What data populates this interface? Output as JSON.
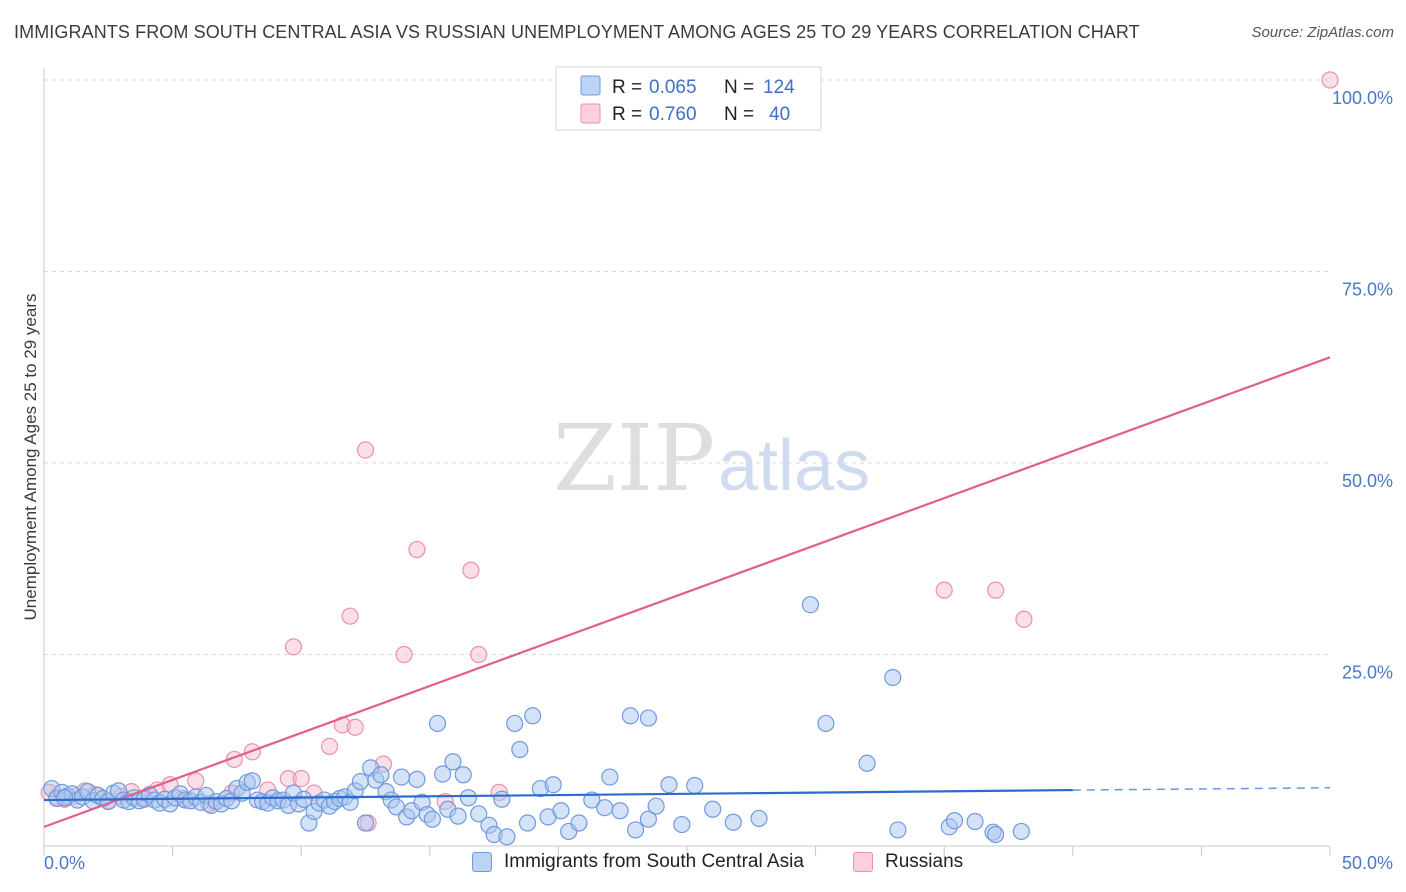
{
  "title": "IMMIGRANTS FROM SOUTH CENTRAL ASIA VS RUSSIAN UNEMPLOYMENT AMONG AGES 25 TO 29 YEARS CORRELATION CHART",
  "source": "Source: ZipAtlas.com",
  "watermark": {
    "zip": "ZIP",
    "atlas": "atlas"
  },
  "colors": {
    "blue_fill": "#a9c6f0",
    "blue_stroke": "#6f9ae0",
    "blue_line": "#2a6ccc",
    "pink_fill": "#f7b9cc",
    "pink_stroke": "#ee8fab",
    "pink_line": "#e0608b",
    "tick": "#4a78c8",
    "grid": "#d9d9d9"
  },
  "legend": {
    "r_label": "R =",
    "n_label": "N =",
    "series": [
      {
        "r": "0.065",
        "n": "124"
      },
      {
        "r": "0.760",
        "n": "40"
      }
    ]
  },
  "bottom_legend": [
    "Immigrants from South Central Asia",
    "Russians"
  ],
  "chart_data": {
    "type": "scatter",
    "title": "IMMIGRANTS FROM SOUTH CENTRAL ASIA VS RUSSIAN UNEMPLOYMENT AMONG AGES 25 TO 29 YEARS CORRELATION CHART",
    "xlabel": "",
    "ylabel": "Unemployment Among Ages 25 to 29 years",
    "xlim": [
      0,
      50
    ],
    "ylim": [
      0,
      100
    ],
    "x_tick_labels": [
      "0.0%",
      "50.0%"
    ],
    "y_ticks": [
      {
        "value": 25,
        "label": "25.0%"
      },
      {
        "value": 50,
        "label": "50.0%"
      },
      {
        "value": 75,
        "label": "75.0%"
      },
      {
        "value": 100,
        "label": "100.0%"
      }
    ],
    "series": [
      {
        "name": "Immigrants from South Central Asia",
        "r": 0.065,
        "n": 124,
        "trend": {
          "x0": 0,
          "y0": 6.0,
          "x1": 40,
          "y1": 7.3,
          "dash_x1": 50,
          "dash_y1": 7.6
        },
        "points": [
          [
            0.3,
            7.5
          ],
          [
            0.5,
            6.2
          ],
          [
            0.7,
            7.0
          ],
          [
            0.9,
            6.5
          ],
          [
            1.1,
            6.8
          ],
          [
            1.3,
            6.0
          ],
          [
            1.5,
            6.4
          ],
          [
            1.7,
            7.1
          ],
          [
            1.9,
            5.9
          ],
          [
            2.1,
            6.6
          ],
          [
            2.3,
            6.2
          ],
          [
            2.5,
            5.8
          ],
          [
            2.7,
            6.9
          ],
          [
            2.9,
            7.2
          ],
          [
            3.1,
            6.0
          ],
          [
            3.3,
            5.8
          ],
          [
            3.5,
            6.3
          ],
          [
            3.7,
            5.9
          ],
          [
            3.9,
            6.1
          ],
          [
            4.1,
            6.7
          ],
          [
            4.3,
            6.0
          ],
          [
            4.5,
            5.6
          ],
          [
            4.7,
            6.1
          ],
          [
            4.9,
            5.5
          ],
          [
            5.1,
            6.3
          ],
          [
            5.3,
            6.8
          ],
          [
            5.5,
            6.0
          ],
          [
            5.7,
            5.9
          ],
          [
            5.9,
            6.4
          ],
          [
            6.1,
            5.7
          ],
          [
            6.3,
            6.6
          ],
          [
            6.5,
            5.3
          ],
          [
            6.7,
            5.8
          ],
          [
            6.9,
            5.5
          ],
          [
            7.1,
            6.2
          ],
          [
            7.3,
            5.9
          ],
          [
            7.5,
            7.5
          ],
          [
            7.7,
            6.9
          ],
          [
            7.9,
            8.3
          ],
          [
            8.1,
            8.5
          ],
          [
            8.3,
            6.0
          ],
          [
            8.5,
            5.8
          ],
          [
            8.7,
            5.6
          ],
          [
            8.9,
            6.3
          ],
          [
            9.1,
            5.9
          ],
          [
            9.3,
            6.0
          ],
          [
            9.5,
            5.3
          ],
          [
            9.7,
            6.9
          ],
          [
            9.9,
            5.5
          ],
          [
            10.1,
            6.1
          ],
          [
            10.3,
            3.0
          ],
          [
            10.5,
            4.5
          ],
          [
            10.7,
            5.6
          ],
          [
            10.9,
            6.0
          ],
          [
            11.1,
            5.2
          ],
          [
            11.3,
            5.8
          ],
          [
            11.5,
            6.2
          ],
          [
            11.7,
            6.4
          ],
          [
            11.9,
            5.7
          ],
          [
            12.1,
            7.2
          ],
          [
            12.3,
            8.4
          ],
          [
            12.5,
            3.0
          ],
          [
            12.7,
            10.2
          ],
          [
            12.9,
            8.6
          ],
          [
            13.1,
            9.3
          ],
          [
            13.3,
            7.1
          ],
          [
            13.5,
            6.0
          ],
          [
            13.7,
            5.1
          ],
          [
            13.9,
            9.0
          ],
          [
            14.1,
            3.8
          ],
          [
            14.3,
            4.6
          ],
          [
            14.5,
            8.7
          ],
          [
            14.7,
            5.7
          ],
          [
            14.9,
            4.1
          ],
          [
            15.1,
            3.5
          ],
          [
            15.3,
            16.0
          ],
          [
            15.5,
            9.4
          ],
          [
            15.7,
            4.8
          ],
          [
            15.9,
            11.0
          ],
          [
            16.1,
            3.9
          ],
          [
            16.3,
            9.3
          ],
          [
            16.5,
            6.3
          ],
          [
            16.9,
            4.2
          ],
          [
            17.3,
            2.7
          ],
          [
            17.5,
            1.5
          ],
          [
            17.8,
            6.1
          ],
          [
            18.0,
            1.2
          ],
          [
            18.3,
            16.0
          ],
          [
            18.5,
            12.6
          ],
          [
            18.8,
            3.0
          ],
          [
            19.0,
            17.0
          ],
          [
            19.3,
            7.5
          ],
          [
            19.6,
            3.8
          ],
          [
            19.8,
            8.0
          ],
          [
            20.1,
            4.6
          ],
          [
            20.4,
            1.9
          ],
          [
            20.8,
            3.0
          ],
          [
            21.3,
            6.0
          ],
          [
            21.8,
            5.0
          ],
          [
            22.0,
            9.0
          ],
          [
            22.4,
            4.6
          ],
          [
            22.8,
            17.0
          ],
          [
            23.0,
            2.1
          ],
          [
            23.5,
            16.7
          ],
          [
            23.5,
            3.5
          ],
          [
            23.8,
            5.2
          ],
          [
            24.3,
            8.0
          ],
          [
            24.8,
            2.8
          ],
          [
            25.3,
            7.9
          ],
          [
            26.0,
            4.8
          ],
          [
            26.8,
            3.1
          ],
          [
            27.8,
            3.6
          ],
          [
            29.8,
            31.5
          ],
          [
            30.4,
            16.0
          ],
          [
            32.0,
            10.8
          ],
          [
            33.0,
            22.0
          ],
          [
            33.2,
            2.1
          ],
          [
            35.2,
            2.5
          ],
          [
            35.4,
            3.3
          ],
          [
            36.2,
            3.2
          ],
          [
            36.9,
            1.8
          ],
          [
            37.0,
            1.5
          ],
          [
            38.0,
            1.9
          ],
          [
            0.8,
            6.3
          ]
        ]
      },
      {
        "name": "Russians",
        "r": 0.76,
        "n": 40,
        "trend": {
          "x0": 0,
          "y0": 2.5,
          "x1": 50,
          "y1": 63.8
        },
        "points": [
          [
            0.2,
            7.0
          ],
          [
            0.5,
            6.4
          ],
          [
            0.8,
            6.1
          ],
          [
            1.2,
            6.5
          ],
          [
            1.6,
            7.2
          ],
          [
            2.0,
            6.7
          ],
          [
            2.5,
            5.9
          ],
          [
            3.0,
            6.5
          ],
          [
            3.4,
            7.1
          ],
          [
            3.9,
            6.3
          ],
          [
            4.4,
            7.3
          ],
          [
            4.9,
            8.0
          ],
          [
            5.4,
            6.2
          ],
          [
            5.9,
            8.5
          ],
          [
            6.4,
            5.5
          ],
          [
            7.3,
            6.9
          ],
          [
            7.4,
            11.3
          ],
          [
            8.1,
            12.3
          ],
          [
            8.7,
            7.3
          ],
          [
            9.5,
            8.8
          ],
          [
            10.0,
            8.8
          ],
          [
            10.5,
            6.9
          ],
          [
            11.1,
            13.0
          ],
          [
            11.6,
            15.8
          ],
          [
            12.1,
            15.5
          ],
          [
            12.6,
            3.0
          ],
          [
            13.2,
            10.7
          ],
          [
            9.7,
            26.0
          ],
          [
            11.9,
            30.0
          ],
          [
            12.5,
            51.7
          ],
          [
            14.0,
            25.0
          ],
          [
            14.5,
            38.7
          ],
          [
            15.6,
            5.8
          ],
          [
            16.6,
            36.0
          ],
          [
            16.9,
            25.0
          ],
          [
            17.7,
            7.0
          ],
          [
            35.0,
            33.4
          ],
          [
            37.0,
            33.4
          ],
          [
            38.1,
            29.6
          ],
          [
            50.0,
            100.0
          ]
        ]
      }
    ]
  }
}
